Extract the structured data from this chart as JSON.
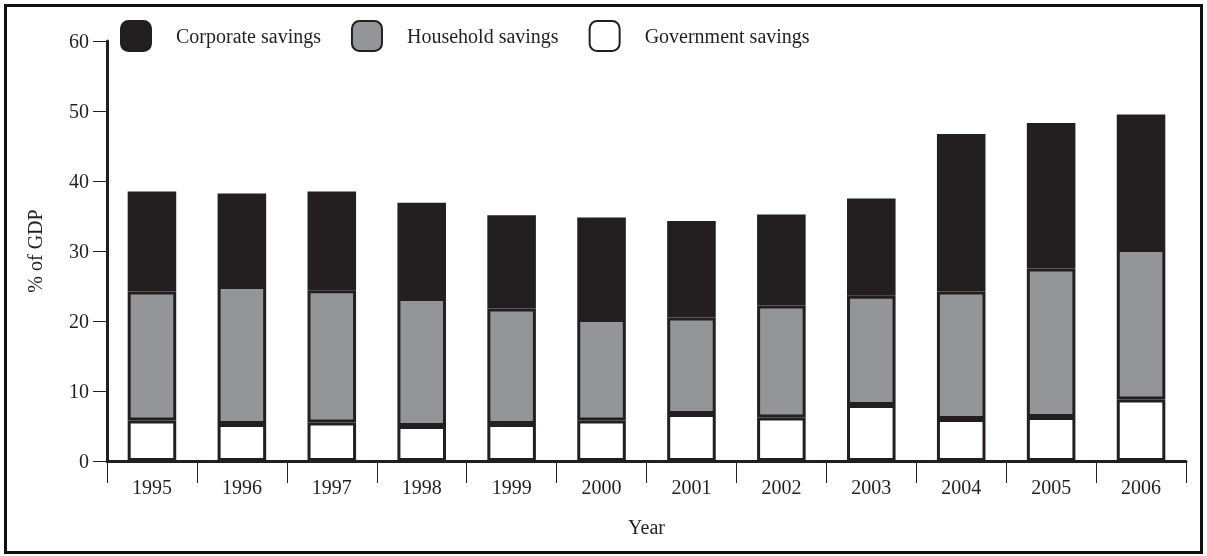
{
  "chart_data": {
    "type": "bar",
    "stacked": true,
    "xlabel": "Year",
    "ylabel": "% of GDP",
    "categories": [
      "1995",
      "1996",
      "1997",
      "1998",
      "1999",
      "2000",
      "2001",
      "2002",
      "2003",
      "2004",
      "2005",
      "2006"
    ],
    "series": [
      {
        "name": "Government savings",
        "color": "#ffffff",
        "values": [
          5.8,
          5.3,
          5.5,
          5.0,
          5.3,
          5.8,
          6.7,
          6.2,
          8.0,
          6.0,
          6.3,
          8.8
        ]
      },
      {
        "name": "Household savings",
        "color": "#939598",
        "values": [
          18.4,
          19.7,
          18.9,
          18.3,
          16.5,
          14.5,
          13.8,
          16.0,
          15.6,
          18.2,
          21.2,
          21.5
        ]
      },
      {
        "name": "Corporate savings",
        "color": "#231f20",
        "values": [
          14.3,
          13.2,
          14.1,
          13.6,
          13.3,
          14.5,
          13.8,
          13.0,
          13.9,
          22.5,
          20.8,
          19.2
        ]
      }
    ],
    "ylim": [
      0,
      60
    ],
    "yticks": [
      0,
      10,
      20,
      30,
      40,
      50,
      60
    ],
    "grid": false,
    "legend": "top left"
  }
}
